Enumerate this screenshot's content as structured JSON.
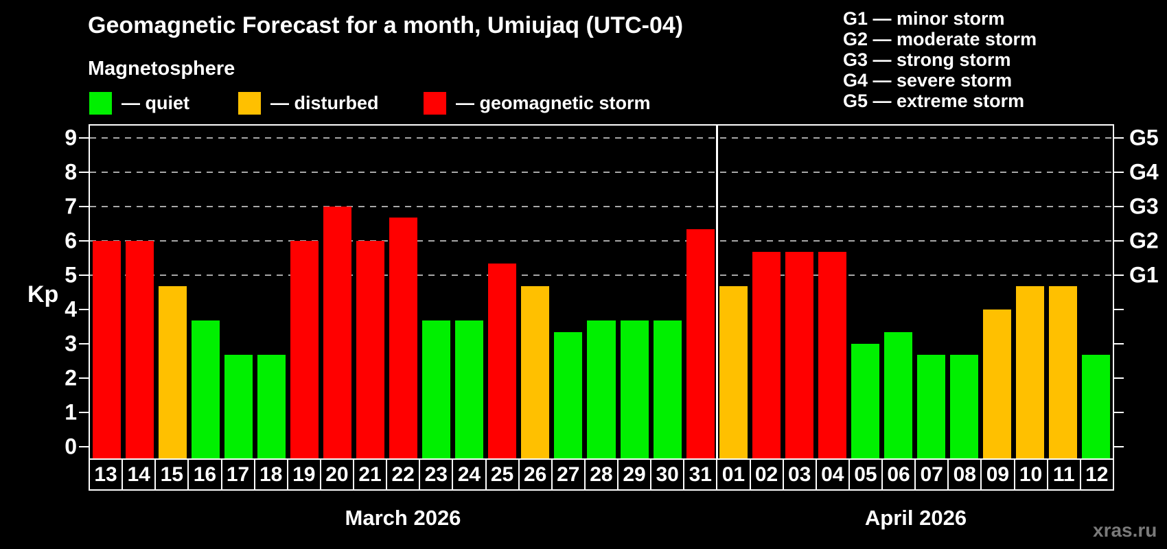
{
  "header": {
    "title": "Geomagnetic Forecast for a month, Umiujaq (UTC-04)",
    "subtitle": "Magnetosphere"
  },
  "legend": {
    "items": [
      {
        "status": "quiet",
        "label": "— quiet"
      },
      {
        "status": "disturbed",
        "label": "— disturbed"
      },
      {
        "status": "storm",
        "label": "— geomagnetic storm"
      }
    ]
  },
  "g_legend": {
    "items": [
      "G1 — minor storm",
      "G2 — moderate storm",
      "G3 — strong storm",
      "G4 — severe storm",
      "G5 — extreme storm"
    ]
  },
  "watermark": "xras.ru",
  "colors": {
    "background": "#000000",
    "text": "#ffffff",
    "quiet": "#00f000",
    "disturbed": "#ffc000",
    "storm": "#ff0000",
    "grid": "#a8a8a8",
    "watermark": "#7a7a7a"
  },
  "chart_data": {
    "type": "bar",
    "title": "Geomagnetic Forecast for a month, Umiujaq (UTC-04)",
    "xlabel": "",
    "ylabel": "Kp",
    "ylim": [
      -0.35,
      9.35
    ],
    "yticks": [
      0,
      1,
      2,
      3,
      4,
      5,
      6,
      7,
      8,
      9
    ],
    "gridlines": [
      5,
      6,
      7,
      8,
      9
    ],
    "grid": "dashed",
    "right_axis": [
      {
        "kp": 5,
        "label": "G1"
      },
      {
        "kp": 6,
        "label": "G2"
      },
      {
        "kp": 7,
        "label": "G3"
      },
      {
        "kp": 8,
        "label": "G4"
      },
      {
        "kp": 9,
        "label": "G5"
      }
    ],
    "months": [
      {
        "label": "March 2026",
        "days": 19
      },
      {
        "label": "April 2026",
        "days": 12
      }
    ],
    "bars": [
      {
        "month": "March",
        "day": "13",
        "kp": 6.0,
        "status": "storm"
      },
      {
        "month": "March",
        "day": "14",
        "kp": 6.0,
        "status": "storm"
      },
      {
        "month": "March",
        "day": "15",
        "kp": 4.67,
        "status": "disturbed"
      },
      {
        "month": "March",
        "day": "16",
        "kp": 3.67,
        "status": "quiet"
      },
      {
        "month": "March",
        "day": "17",
        "kp": 2.67,
        "status": "quiet"
      },
      {
        "month": "March",
        "day": "18",
        "kp": 2.67,
        "status": "quiet"
      },
      {
        "month": "March",
        "day": "19",
        "kp": 6.0,
        "status": "storm"
      },
      {
        "month": "March",
        "day": "20",
        "kp": 7.0,
        "status": "storm"
      },
      {
        "month": "March",
        "day": "21",
        "kp": 6.0,
        "status": "storm"
      },
      {
        "month": "March",
        "day": "22",
        "kp": 6.67,
        "status": "storm"
      },
      {
        "month": "March",
        "day": "23",
        "kp": 3.67,
        "status": "quiet"
      },
      {
        "month": "March",
        "day": "24",
        "kp": 3.67,
        "status": "quiet"
      },
      {
        "month": "March",
        "day": "25",
        "kp": 5.33,
        "status": "storm"
      },
      {
        "month": "March",
        "day": "26",
        "kp": 4.67,
        "status": "disturbed"
      },
      {
        "month": "March",
        "day": "27",
        "kp": 3.33,
        "status": "quiet"
      },
      {
        "month": "March",
        "day": "28",
        "kp": 3.67,
        "status": "quiet"
      },
      {
        "month": "March",
        "day": "29",
        "kp": 3.67,
        "status": "quiet"
      },
      {
        "month": "March",
        "day": "30",
        "kp": 3.67,
        "status": "quiet"
      },
      {
        "month": "March",
        "day": "31",
        "kp": 6.33,
        "status": "storm"
      },
      {
        "month": "April",
        "day": "01",
        "kp": 4.67,
        "status": "disturbed"
      },
      {
        "month": "April",
        "day": "02",
        "kp": 5.67,
        "status": "storm"
      },
      {
        "month": "April",
        "day": "03",
        "kp": 5.67,
        "status": "storm"
      },
      {
        "month": "April",
        "day": "04",
        "kp": 5.67,
        "status": "storm"
      },
      {
        "month": "April",
        "day": "05",
        "kp": 3.0,
        "status": "quiet"
      },
      {
        "month": "April",
        "day": "06",
        "kp": 3.33,
        "status": "quiet"
      },
      {
        "month": "April",
        "day": "07",
        "kp": 2.67,
        "status": "quiet"
      },
      {
        "month": "April",
        "day": "08",
        "kp": 2.67,
        "status": "quiet"
      },
      {
        "month": "April",
        "day": "09",
        "kp": 4.0,
        "status": "disturbed"
      },
      {
        "month": "April",
        "day": "10",
        "kp": 4.67,
        "status": "disturbed"
      },
      {
        "month": "April",
        "day": "11",
        "kp": 4.67,
        "status": "disturbed"
      },
      {
        "month": "April",
        "day": "12",
        "kp": 2.67,
        "status": "quiet"
      }
    ]
  }
}
